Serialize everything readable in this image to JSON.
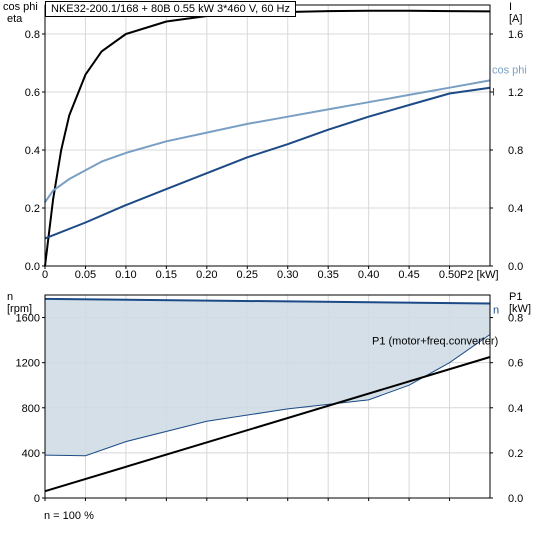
{
  "header": {
    "title": "NKE32-200.1/168 + 80B   0.55 kW   3*460 V, 60 Hz"
  },
  "footer": {
    "note": "n = 100 %"
  },
  "chart_data": [
    {
      "type": "line",
      "left_axis_label": [
        "cos phi",
        "eta"
      ],
      "right_axis_label": [
        "I",
        "[A]"
      ],
      "xlabel": "P2 [kW]",
      "xlim": [
        0,
        0.55
      ],
      "ylim_left": [
        0,
        0.9
      ],
      "ylim_right": [
        0,
        1.8
      ],
      "x_ticks": [
        "0",
        "0.05",
        "0.10",
        "0.15",
        "0.20",
        "0.25",
        "0.30",
        "0.35",
        "0.40",
        "0.45",
        "0.50"
      ],
      "y_ticks_left": [
        "0.0",
        "0.2",
        "0.4",
        "0.6",
        "0.8"
      ],
      "y_ticks_right": [
        "0.0",
        "0.4",
        "0.8",
        "1.2",
        "1.6"
      ],
      "grid": true,
      "series": [
        {
          "name": "eta",
          "axis": "left",
          "color": "#000000",
          "x": [
            0,
            0.01,
            0.02,
            0.03,
            0.05,
            0.07,
            0.1,
            0.15,
            0.2,
            0.25,
            0.3,
            0.35,
            0.4,
            0.45,
            0.5,
            0.55
          ],
          "y": [
            0,
            0.23,
            0.4,
            0.52,
            0.66,
            0.74,
            0.8,
            0.843,
            0.862,
            0.871,
            0.876,
            0.879,
            0.88,
            0.88,
            0.879,
            0.878
          ]
        },
        {
          "name": "cos phi",
          "axis": "left",
          "color": "#7a9fc4",
          "x": [
            0,
            0.01,
            0.02,
            0.03,
            0.05,
            0.07,
            0.1,
            0.15,
            0.2,
            0.25,
            0.3,
            0.35,
            0.4,
            0.45,
            0.5,
            0.55
          ],
          "y": [
            0.22,
            0.26,
            0.28,
            0.3,
            0.33,
            0.36,
            0.39,
            0.43,
            0.46,
            0.49,
            0.515,
            0.54,
            0.565,
            0.59,
            0.615,
            0.64
          ]
        },
        {
          "name": "I",
          "axis": "right",
          "color": "#1c4a86",
          "x": [
            0,
            0.05,
            0.1,
            0.15,
            0.2,
            0.25,
            0.3,
            0.35,
            0.4,
            0.45,
            0.5,
            0.55
          ],
          "y": [
            0.19,
            0.3,
            0.42,
            0.53,
            0.64,
            0.75,
            0.84,
            0.94,
            1.03,
            1.11,
            1.19,
            1.23
          ]
        }
      ]
    },
    {
      "type": "line",
      "left_axis_label": [
        "n",
        "[rpm]"
      ],
      "right_axis_label": [
        "P1",
        "[kW]"
      ],
      "xlim": [
        0,
        0.55
      ],
      "ylim_left": [
        0,
        1800
      ],
      "ylim_right": [
        0,
        0.9
      ],
      "y_ticks_left": [
        "0",
        "400",
        "800",
        "1200",
        "1600"
      ],
      "y_ticks_right": [
        "0.0",
        "0.2",
        "0.4",
        "0.6",
        "0.8"
      ],
      "grid": true,
      "band_color": "#cfdbe6",
      "series": [
        {
          "name": "n",
          "axis": "left",
          "color": "#1c4a86",
          "x": [
            0,
            0.55
          ],
          "y": [
            1765,
            1725
          ]
        },
        {
          "name": "P1 (motor+freq.converter)",
          "axis": "right",
          "color": "#000000",
          "x": [
            0,
            0.55
          ],
          "y": [
            0.03,
            0.625
          ]
        },
        {
          "name": "",
          "axis": "left",
          "color": "#1c4a86",
          "band_lower": true,
          "x": [
            0,
            0.05,
            0.1,
            0.2,
            0.3,
            0.4,
            0.45,
            0.5,
            0.55
          ],
          "y": [
            380,
            375,
            500,
            680,
            790,
            870,
            1000,
            1200,
            1450
          ]
        }
      ]
    }
  ]
}
